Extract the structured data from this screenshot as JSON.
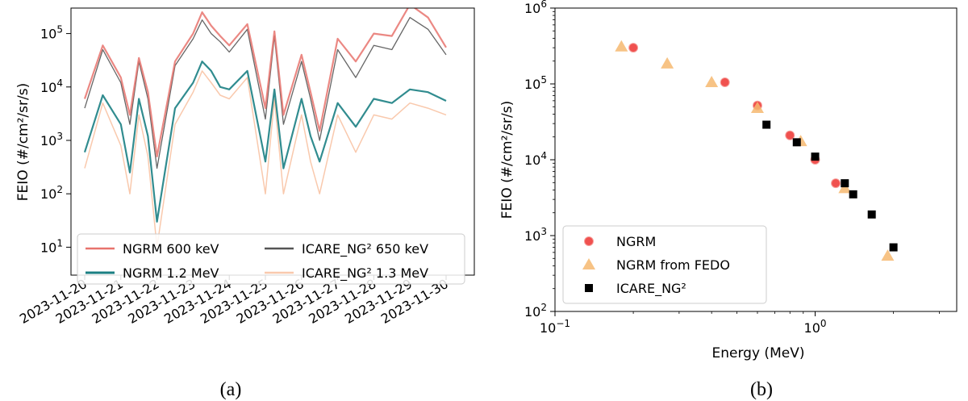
{
  "chart_data": [
    {
      "type": "line",
      "caption": "(a)",
      "ylabel": "FEIO (#/cm²/sr/s)",
      "xlabel": "",
      "yscale": "log",
      "ylim": [
        3,
        300000
      ],
      "y_ticks": [
        {
          "value": 10,
          "label": "10",
          "exp": "1"
        },
        {
          "value": 100,
          "label": "10",
          "exp": "2"
        },
        {
          "value": 1000,
          "label": "10",
          "exp": "3"
        },
        {
          "value": 10000,
          "label": "10",
          "exp": "4"
        },
        {
          "value": 100000,
          "label": "10",
          "exp": "5"
        }
      ],
      "x_ticks": [
        "2023-11-20",
        "2023-11-21",
        "2023-11-22",
        "2023-11-23",
        "2023-11-24",
        "2023-11-25",
        "2023-11-26",
        "2023-11-27",
        "2023-11-28",
        "2023-11-29",
        "2023-11-30"
      ],
      "legend_position": "lower-center",
      "series": [
        {
          "name": "NGRM 600 keV",
          "color": "#e8736d",
          "x": [
            "2023-11-20 00:00",
            "2023-11-20 12:00",
            "2023-11-21 00:00",
            "2023-11-21 06:00",
            "2023-11-21 12:00",
            "2023-11-21 18:00",
            "2023-11-22 00:00",
            "2023-11-22 12:00",
            "2023-11-23 00:00",
            "2023-11-23 06:00",
            "2023-11-23 12:00",
            "2023-11-23 18:00",
            "2023-11-24 00:00",
            "2023-11-24 12:00",
            "2023-11-25 00:00",
            "2023-11-25 06:00",
            "2023-11-25 12:00",
            "2023-11-26 00:00",
            "2023-11-26 06:00",
            "2023-11-26 12:00",
            "2023-11-27 00:00",
            "2023-11-27 12:00",
            "2023-11-28 00:00",
            "2023-11-28 12:00",
            "2023-11-29 00:00",
            "2023-11-29 12:00",
            "2023-11-30 00:00"
          ],
          "values": [
            6000,
            60000,
            15000,
            3000,
            35000,
            8000,
            500,
            30000,
            100000,
            250000,
            140000,
            90000,
            60000,
            150000,
            4000,
            110000,
            3000,
            40000,
            8000,
            1500,
            80000,
            30000,
            100000,
            90000,
            350000,
            200000,
            55000
          ]
        },
        {
          "name": "ICARE_NG² 650 keV",
          "color": "#555555",
          "x": [
            "2023-11-20 00:00",
            "2023-11-20 12:00",
            "2023-11-21 00:00",
            "2023-11-21 06:00",
            "2023-11-21 12:00",
            "2023-11-21 18:00",
            "2023-11-22 00:00",
            "2023-11-22 12:00",
            "2023-11-23 00:00",
            "2023-11-23 06:00",
            "2023-11-23 12:00",
            "2023-11-23 18:00",
            "2023-11-24 00:00",
            "2023-11-24 12:00",
            "2023-11-25 00:00",
            "2023-11-25 06:00",
            "2023-11-25 12:00",
            "2023-11-26 00:00",
            "2023-11-26 06:00",
            "2023-11-26 12:00",
            "2023-11-27 00:00",
            "2023-11-27 12:00",
            "2023-11-28 00:00",
            "2023-11-28 12:00",
            "2023-11-29 00:00",
            "2023-11-29 12:00",
            "2023-11-30 00:00"
          ],
          "values": [
            4000,
            50000,
            12000,
            2000,
            30000,
            6000,
            300,
            25000,
            80000,
            180000,
            100000,
            70000,
            45000,
            120000,
            2500,
            90000,
            2000,
            30000,
            6000,
            1000,
            50000,
            15000,
            60000,
            50000,
            200000,
            120000,
            40000
          ]
        },
        {
          "name": "NGRM 1.2 MeV",
          "color": "#1b7f83",
          "x": [
            "2023-11-20 00:00",
            "2023-11-20 12:00",
            "2023-11-21 00:00",
            "2023-11-21 06:00",
            "2023-11-21 12:00",
            "2023-11-21 18:00",
            "2023-11-22 00:00",
            "2023-11-22 12:00",
            "2023-11-23 00:00",
            "2023-11-23 06:00",
            "2023-11-23 12:00",
            "2023-11-23 18:00",
            "2023-11-24 00:00",
            "2023-11-24 12:00",
            "2023-11-25 00:00",
            "2023-11-25 06:00",
            "2023-11-25 12:00",
            "2023-11-26 00:00",
            "2023-11-26 06:00",
            "2023-11-26 12:00",
            "2023-11-27 00:00",
            "2023-11-27 12:00",
            "2023-11-28 00:00",
            "2023-11-28 12:00",
            "2023-11-29 00:00",
            "2023-11-29 12:00",
            "2023-11-30 00:00"
          ],
          "values": [
            600,
            7000,
            2000,
            250,
            6000,
            1200,
            30,
            4000,
            12000,
            30000,
            20000,
            10000,
            9000,
            20000,
            400,
            9000,
            300,
            6000,
            1200,
            400,
            5000,
            1800,
            6000,
            5000,
            9000,
            8000,
            5500
          ]
        },
        {
          "name": "ICARE_NG² 1.3 MeV",
          "color": "#f9c9ad",
          "x": [
            "2023-11-20 00:00",
            "2023-11-20 12:00",
            "2023-11-21 00:00",
            "2023-11-21 06:00",
            "2023-11-21 12:00",
            "2023-11-21 18:00",
            "2023-11-22 00:00",
            "2023-11-22 12:00",
            "2023-11-23 00:00",
            "2023-11-23 06:00",
            "2023-11-23 12:00",
            "2023-11-23 18:00",
            "2023-11-24 00:00",
            "2023-11-24 12:00",
            "2023-11-25 00:00",
            "2023-11-25 06:00",
            "2023-11-25 12:00",
            "2023-11-26 00:00",
            "2023-11-26 06:00",
            "2023-11-26 12:00",
            "2023-11-27 00:00",
            "2023-11-27 12:00",
            "2023-11-28 00:00",
            "2023-11-28 12:00",
            "2023-11-29 00:00",
            "2023-11-29 12:00",
            "2023-11-30 00:00"
          ],
          "values": [
            300,
            5000,
            800,
            100,
            3000,
            500,
            10,
            2000,
            8000,
            20000,
            12000,
            7000,
            6000,
            15000,
            100,
            6000,
            100,
            3000,
            400,
            100,
            3000,
            600,
            3000,
            2500,
            5000,
            4000,
            3000
          ]
        }
      ]
    },
    {
      "type": "scatter",
      "caption": "(b)",
      "xlabel": "Energy (MeV)",
      "ylabel": "FEIO (#/cm²/sr/s)",
      "xscale": "log",
      "yscale": "log",
      "xlim": [
        0.1,
        3.5
      ],
      "ylim": [
        100,
        1000000
      ],
      "x_ticks": [
        {
          "value": 0.1,
          "label": "10",
          "exp": "−1"
        },
        {
          "value": 1,
          "label": "10",
          "exp": "0"
        }
      ],
      "y_ticks": [
        {
          "value": 100,
          "label": "10",
          "exp": "2"
        },
        {
          "value": 1000,
          "label": "10",
          "exp": "3"
        },
        {
          "value": 10000,
          "label": "10",
          "exp": "4"
        },
        {
          "value": 100000,
          "label": "10",
          "exp": "5"
        },
        {
          "value": 1000000,
          "label": "10",
          "exp": "6"
        }
      ],
      "legend_position": "lower-left",
      "series": [
        {
          "name": "NGRM",
          "marker": "circle",
          "color": "#f0514f",
          "x": [
            0.2,
            0.45,
            0.6,
            0.8,
            1.0,
            1.2
          ],
          "values": [
            300000,
            105000,
            52000,
            21000,
            10000,
            4900
          ]
        },
        {
          "name": "NGRM from FEDO",
          "marker": "triangle",
          "color": "#f6b870",
          "x": [
            0.18,
            0.27,
            0.4,
            0.6,
            0.88,
            1.3,
            1.9
          ],
          "values": [
            310000,
            185000,
            105000,
            48000,
            17500,
            4200,
            540
          ]
        },
        {
          "name": "ICARE_NG²",
          "marker": "square",
          "color": "#000000",
          "x": [
            0.65,
            0.85,
            1.0,
            1.3,
            1.4,
            1.65,
            2.0
          ],
          "values": [
            29000,
            17000,
            11000,
            4900,
            3500,
            1900,
            700
          ]
        }
      ]
    }
  ]
}
